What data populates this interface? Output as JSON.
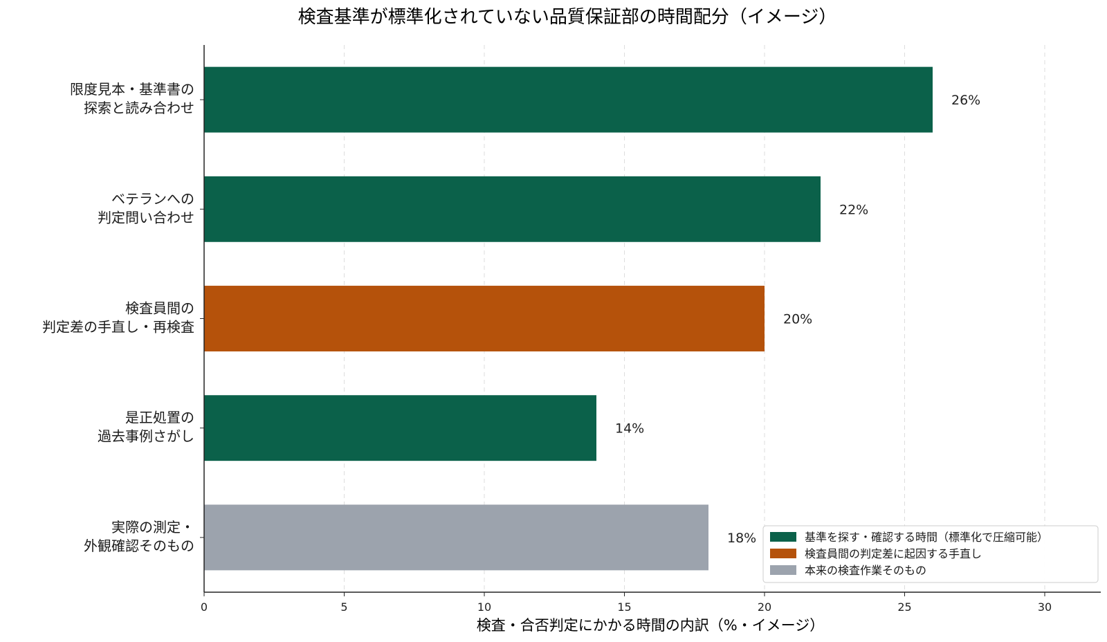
{
  "chart_data": {
    "type": "bar",
    "orientation": "horizontal",
    "title": "検査基準が標準化されていない品質保証部の時間配分（イメージ）",
    "xlabel": "検査・合否判定にかかる時間の内訳（%・イメージ）",
    "ylabel": "",
    "xlim": [
      0,
      32
    ],
    "xticks": [
      0,
      5,
      10,
      15,
      20,
      25,
      30
    ],
    "grid": "vertical dashed",
    "legend_position": "bottom-right",
    "categories": [
      [
        "限度見本・基準書の",
        "探索と読み合わせ"
      ],
      [
        "ベテランへの",
        "判定問い合わせ"
      ],
      [
        "検査員間の",
        "判定差の手直し・再検査"
      ],
      [
        "是正処置の",
        "過去事例さがし"
      ],
      [
        "実際の測定・",
        "外観確認そのもの"
      ]
    ],
    "values": [
      26,
      22,
      20,
      14,
      18
    ],
    "value_labels": [
      "26%",
      "22%",
      "20%",
      "14%",
      "18%"
    ],
    "bar_groups": [
      0,
      0,
      1,
      0,
      2
    ],
    "legend": [
      {
        "label": "基準を探す・確認する時間（標準化で圧縮可能）",
        "color": "#0b614a"
      },
      {
        "label": "検査員間の判定差に起因する手直し",
        "color": "#b5520b"
      },
      {
        "label": "本来の検査作業そのもの",
        "color": "#9ca3ad"
      }
    ]
  }
}
